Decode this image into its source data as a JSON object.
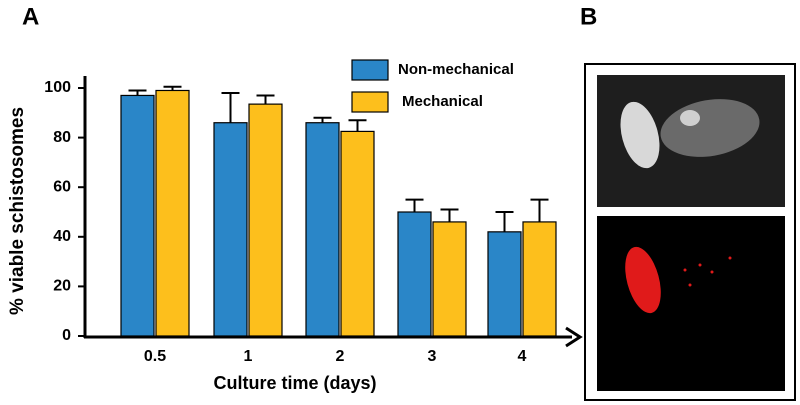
{
  "chart_data": {
    "type": "bar",
    "panel_label": "A",
    "ylabel": "% viable schistosomes",
    "xlabel": "Culture time (days)",
    "categories": [
      "0.5",
      "1",
      "2",
      "3",
      "4"
    ],
    "series": [
      {
        "name": "Non-mechanical",
        "color": "#2a86c8",
        "values": [
          97,
          86,
          86,
          50,
          42
        ],
        "errors": [
          2,
          12,
          2,
          5,
          8
        ]
      },
      {
        "name": "Mechanical",
        "color": "#fdbf1c",
        "values": [
          99,
          93.5,
          82.5,
          46,
          46
        ],
        "errors": [
          1.5,
          3.5,
          4.5,
          5,
          9
        ]
      }
    ],
    "ylim": [
      0,
      100
    ],
    "yticks": [
      0,
      20,
      40,
      60,
      80,
      100
    ]
  },
  "panel_b": {
    "label": "B"
  }
}
